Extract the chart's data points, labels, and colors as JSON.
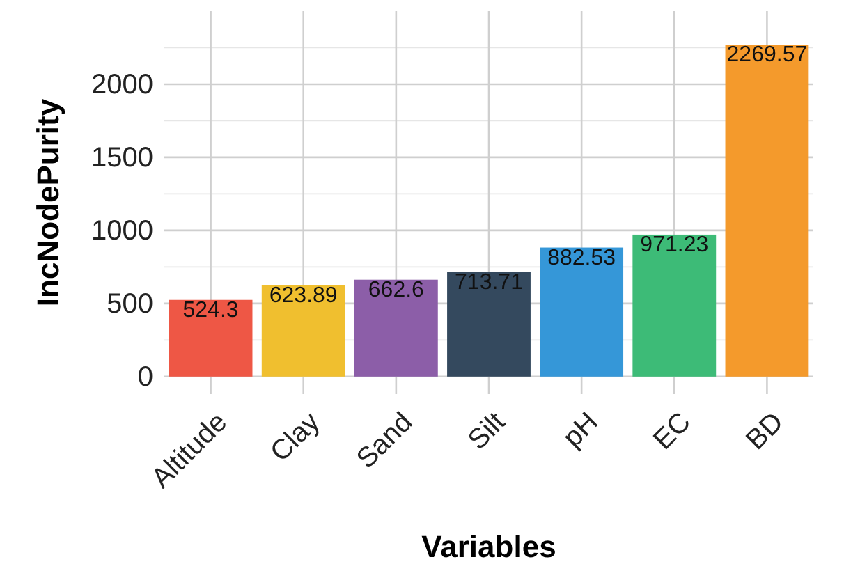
{
  "chart_data": {
    "type": "bar",
    "xlabel": "Variables",
    "ylabel": "IncNodePurity",
    "categories": [
      "Altitude",
      "Clay",
      "Sand",
      "Silt",
      "pH",
      "EC",
      "BD"
    ],
    "values": [
      524.3,
      623.89,
      662.6,
      713.71,
      882.53,
      971.23,
      2269.57
    ],
    "colors": [
      "#ee5745",
      "#f0bf2f",
      "#8c5ea8",
      "#34495e",
      "#3597d8",
      "#3dbb77",
      "#f49a2c"
    ],
    "ylim": [
      -120,
      2500
    ],
    "yticks": [
      0,
      {
        "value": 250,
        "label": null
      },
      500,
      {
        "value": 750,
        "label": null
      },
      1000,
      {
        "value": 1250,
        "label": null
      },
      1500,
      {
        "value": 1750,
        "label": null
      },
      2000,
      {
        "value": 2250,
        "label": null
      }
    ],
    "grid": true,
    "data_labels": true
  }
}
